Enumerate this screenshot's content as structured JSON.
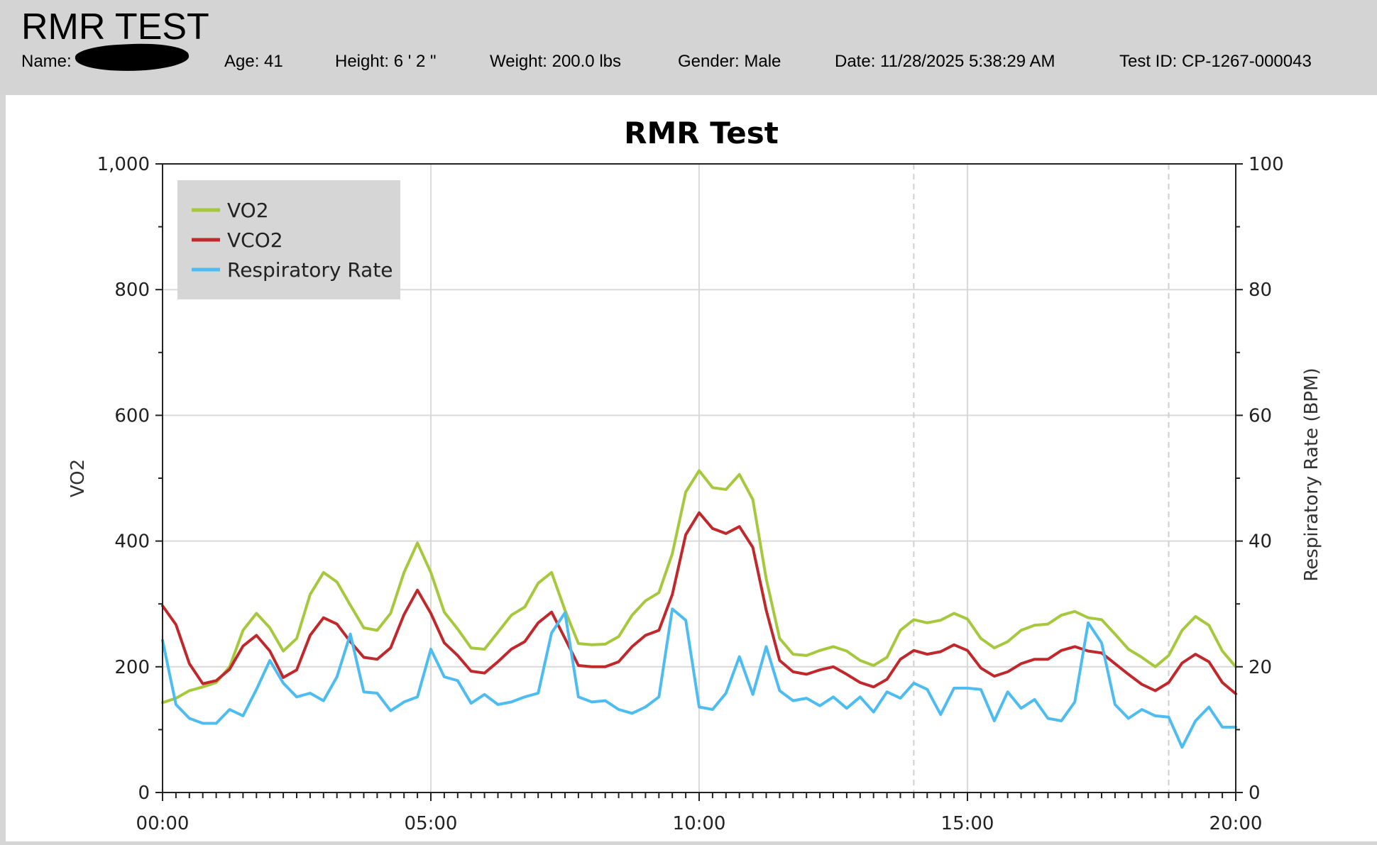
{
  "header": {
    "title": "RMR TEST",
    "name_label": "Name:",
    "age": "Age: 41",
    "height": "Height: 6 ' 2 \"",
    "weight": "Weight: 200.0 lbs",
    "gender": "Gender: Male",
    "date": "Date: 11/28/2025 5:38:29 AM",
    "test_id": "Test ID: CP-1267-000043"
  },
  "chart_data": {
    "type": "line",
    "title": "RMR Test",
    "xlabel": "",
    "ylabel": "VO2",
    "y2label": "Respiratory Rate (BPM)",
    "xlim": [
      "00:00",
      "20:00"
    ],
    "ylim": [
      0,
      1000
    ],
    "y2lim": [
      0,
      100
    ],
    "x_ticks": [
      "00:00",
      "05:00",
      "10:00",
      "15:00",
      "20:00"
    ],
    "y_ticks": [
      "0",
      "200",
      "400",
      "600",
      "800",
      "1,000"
    ],
    "y2_ticks": [
      "0",
      "20",
      "40",
      "60",
      "80",
      "100"
    ],
    "grid": true,
    "legend_position": "top-left",
    "x": [
      "00:00",
      "00:15",
      "00:30",
      "00:45",
      "01:00",
      "01:15",
      "01:30",
      "01:45",
      "02:00",
      "02:15",
      "02:30",
      "02:45",
      "03:00",
      "03:15",
      "03:30",
      "03:45",
      "04:00",
      "04:15",
      "04:30",
      "04:45",
      "05:00",
      "05:15",
      "05:30",
      "05:45",
      "06:00",
      "06:15",
      "06:30",
      "06:45",
      "07:00",
      "07:15",
      "07:30",
      "07:45",
      "08:00",
      "08:15",
      "08:30",
      "08:45",
      "09:00",
      "09:15",
      "09:30",
      "09:45",
      "10:00",
      "10:15",
      "10:30",
      "10:45",
      "11:00",
      "11:15",
      "11:30",
      "11:45",
      "12:00",
      "12:15",
      "12:30",
      "12:45",
      "13:00",
      "13:15",
      "13:30",
      "13:45",
      "14:00",
      "14:15",
      "14:30",
      "14:45",
      "15:00",
      "15:15",
      "15:30",
      "15:45",
      "16:00",
      "16:15",
      "16:30",
      "16:45",
      "17:00",
      "17:15",
      "17:30",
      "17:45",
      "18:00",
      "18:15",
      "18:30",
      "18:45",
      "19:00",
      "19:15",
      "19:30",
      "19:45",
      "20:00"
    ],
    "series": [
      {
        "name": "VO2",
        "axis": "left",
        "color": "#a6c83c",
        "values": [
          143,
          150,
          162,
          168,
          175,
          200,
          258,
          285,
          262,
          225,
          245,
          315,
          350,
          335,
          298,
          262,
          258,
          285,
          350,
          397,
          350,
          287,
          260,
          230,
          228,
          255,
          282,
          295,
          333,
          350,
          290,
          237,
          235,
          236,
          248,
          282,
          305,
          318,
          380,
          478,
          512,
          485,
          482,
          506,
          466,
          340,
          245,
          220,
          218,
          226,
          232,
          225,
          210,
          202,
          215,
          258,
          275,
          270,
          274,
          285,
          276,
          245,
          230,
          240,
          258,
          266,
          268,
          282,
          288,
          278,
          275,
          252,
          228,
          215,
          200,
          218,
          258,
          280,
          266,
          225,
          200
        ]
      },
      {
        "name": "VCO2",
        "axis": "left",
        "color": "#c0282b",
        "values": [
          297,
          267,
          205,
          173,
          178,
          196,
          233,
          250,
          225,
          183,
          195,
          250,
          278,
          268,
          240,
          215,
          212,
          230,
          283,
          322,
          285,
          238,
          218,
          193,
          190,
          208,
          228,
          240,
          270,
          287,
          245,
          202,
          200,
          200,
          208,
          232,
          250,
          258,
          315,
          410,
          445,
          420,
          412,
          423,
          390,
          290,
          210,
          192,
          188,
          195,
          200,
          188,
          175,
          168,
          180,
          212,
          226,
          220,
          224,
          235,
          226,
          198,
          185,
          192,
          205,
          212,
          212,
          226,
          232,
          225,
          222,
          205,
          188,
          172,
          162,
          175,
          206,
          220,
          208,
          175,
          157
        ]
      },
      {
        "name": "Respiratory Rate",
        "axis": "right",
        "color": "#4dbcf0",
        "values": [
          24.2,
          14.0,
          11.8,
          11.0,
          11.0,
          13.2,
          12.2,
          16.4,
          21.0,
          17.4,
          15.2,
          15.8,
          14.6,
          18.4,
          25.2,
          16.0,
          15.8,
          13.0,
          14.4,
          15.2,
          22.8,
          18.4,
          17.8,
          14.2,
          15.6,
          14.0,
          14.4,
          15.2,
          15.8,
          25.4,
          28.6,
          15.2,
          14.4,
          14.6,
          13.2,
          12.6,
          13.6,
          15.2,
          29.2,
          27.4,
          13.6,
          13.2,
          15.8,
          21.6,
          15.6,
          23.2,
          16.2,
          14.6,
          15.0,
          13.8,
          15.2,
          13.4,
          15.2,
          12.8,
          16.0,
          15.0,
          17.4,
          16.4,
          12.4,
          16.6,
          16.6,
          16.4,
          11.4,
          16.0,
          13.4,
          14.8,
          11.8,
          11.4,
          14.4,
          27.0,
          23.8,
          14.0,
          11.8,
          13.2,
          12.2,
          12.0,
          7.2,
          11.4,
          13.6,
          10.4,
          10.4
        ]
      }
    ]
  }
}
